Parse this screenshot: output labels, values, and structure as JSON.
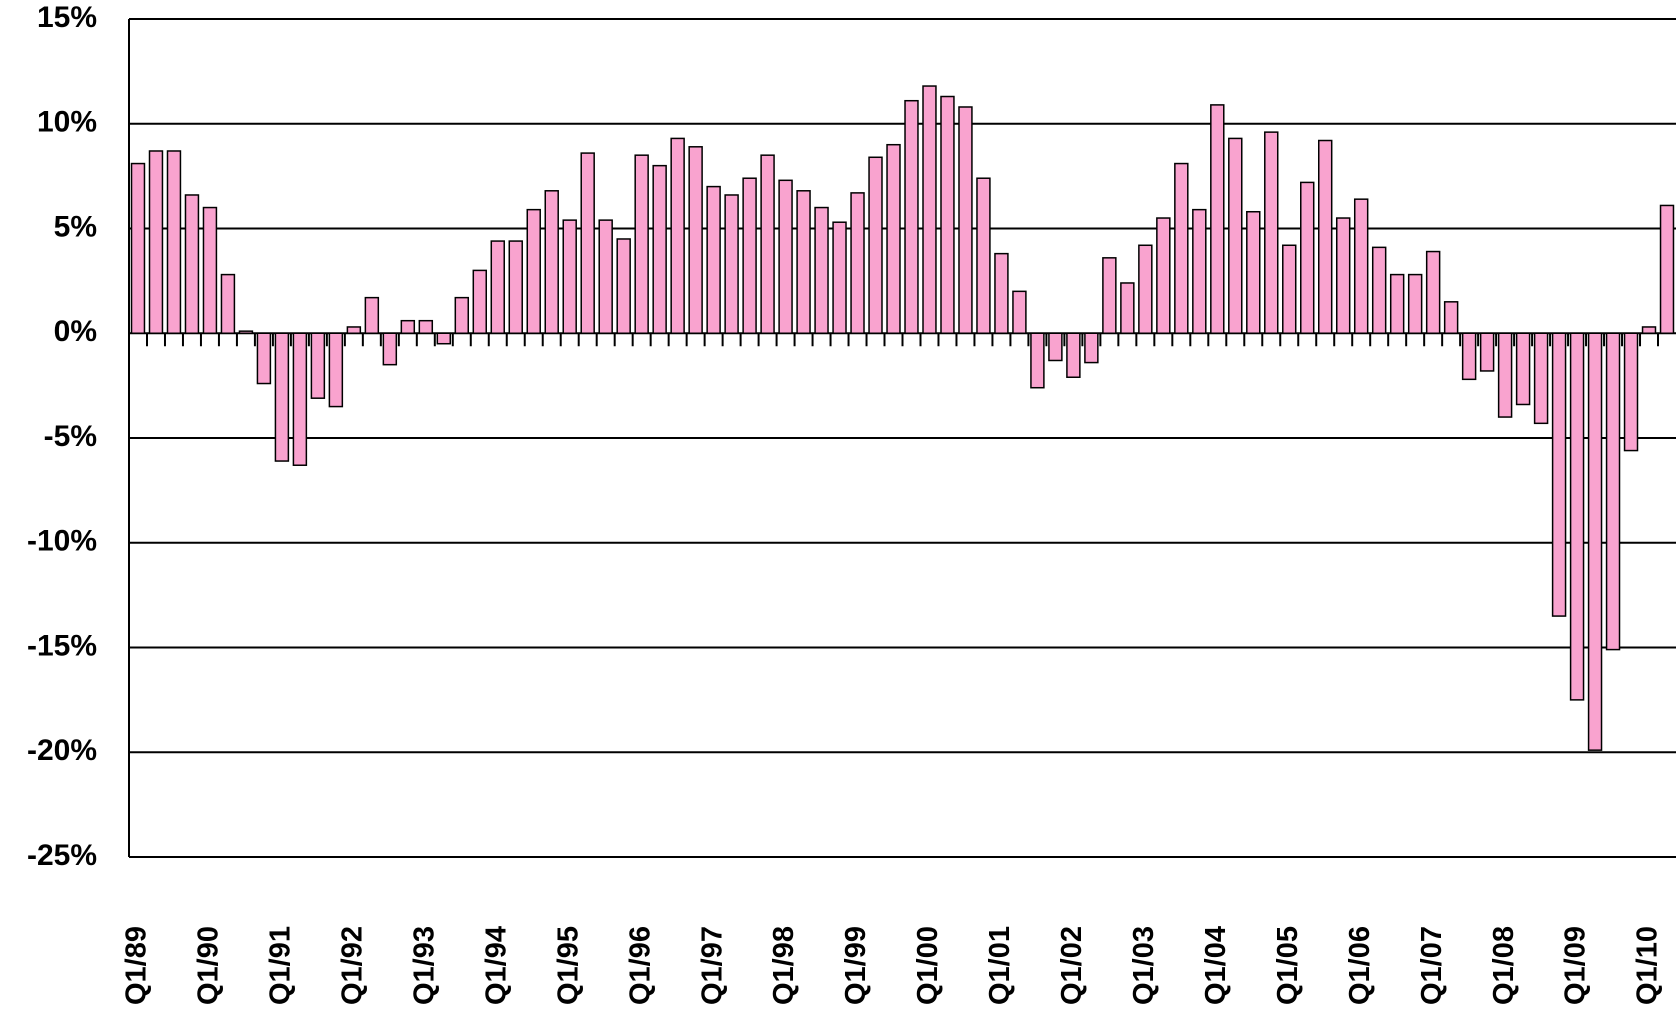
{
  "chart_data": {
    "type": "bar",
    "categories": [
      "Q1/89",
      null,
      null,
      null,
      "Q1/90",
      null,
      null,
      null,
      "Q1/91",
      null,
      null,
      null,
      "Q1/92",
      null,
      null,
      null,
      "Q1/93",
      null,
      null,
      null,
      "Q1/94",
      null,
      null,
      null,
      "Q1/95",
      null,
      null,
      null,
      "Q1/96",
      null,
      null,
      null,
      "Q1/97",
      null,
      null,
      null,
      "Q1/98",
      null,
      null,
      null,
      "Q1/99",
      null,
      null,
      null,
      "Q1/00",
      null,
      null,
      null,
      "Q1/01",
      null,
      null,
      null,
      "Q1/02",
      null,
      null,
      null,
      "Q1/03",
      null,
      null,
      null,
      "Q1/04",
      null,
      null,
      null,
      "Q1/05",
      null,
      null,
      null,
      "Q1/06",
      null,
      null,
      null,
      "Q1/07",
      null,
      null,
      null,
      "Q1/08",
      null,
      null,
      null,
      "Q1/09",
      null,
      null,
      null,
      "Q1/10",
      null
    ],
    "values": [
      8.1,
      8.7,
      8.7,
      6.6,
      6.0,
      2.8,
      0.1,
      -2.4,
      -6.1,
      -6.3,
      -3.1,
      -3.5,
      0.3,
      1.7,
      -1.5,
      0.6,
      0.6,
      -0.5,
      1.7,
      3.0,
      4.4,
      4.4,
      5.9,
      6.8,
      5.4,
      8.6,
      5.4,
      4.5,
      8.5,
      8.0,
      9.3,
      8.9,
      7.0,
      6.6,
      7.4,
      8.5,
      7.3,
      6.8,
      6.0,
      5.3,
      6.7,
      8.4,
      9.0,
      11.1,
      11.8,
      11.3,
      10.8,
      7.4,
      3.8,
      2.0,
      -2.6,
      -1.3,
      -2.1,
      -1.4,
      3.6,
      2.4,
      4.2,
      5.5,
      8.1,
      5.9,
      10.9,
      9.3,
      5.8,
      9.6,
      4.2,
      7.2,
      9.2,
      5.5,
      6.4,
      4.1,
      2.8,
      2.8,
      3.9,
      1.5,
      -2.2,
      -1.8,
      -4.0,
      -3.4,
      -4.3,
      -13.5,
      -17.5,
      -19.9,
      -15.1,
      -5.6,
      0.3,
      6.1
    ],
    "color": "#f9a3cf",
    "ylim": [
      -25,
      15
    ],
    "yticks": [
      {
        "value": -25,
        "label": "-25%"
      },
      {
        "value": -20,
        "label": "-20%"
      },
      {
        "value": -15,
        "label": "-15%"
      },
      {
        "value": -10,
        "label": "-10%"
      },
      {
        "value": -5,
        "label": "-5%"
      },
      {
        "value": 0,
        "label": "0%"
      },
      {
        "value": 5,
        "label": "5%"
      },
      {
        "value": 10,
        "label": "10%"
      },
      {
        "value": 15,
        "label": "15%"
      }
    ],
    "grid": true
  }
}
